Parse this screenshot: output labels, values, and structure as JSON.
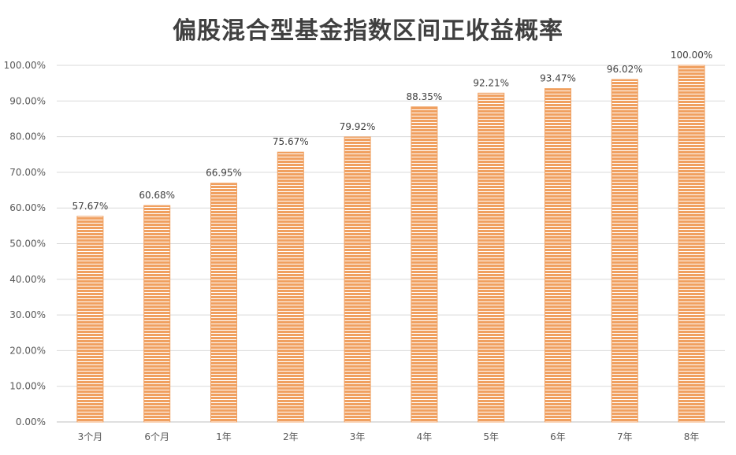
{
  "chart_data": {
    "type": "bar",
    "title": "偏股混合型基金指数区间正收益概率",
    "categories": [
      "3个月",
      "6个月",
      "1年",
      "2年",
      "3年",
      "4年",
      "5年",
      "6年",
      "7年",
      "8年"
    ],
    "values": [
      57.67,
      60.68,
      66.95,
      75.67,
      79.92,
      88.35,
      92.21,
      93.47,
      96.02,
      100.0
    ],
    "data_labels": [
      "57.67%",
      "60.68%",
      "66.95%",
      "75.67%",
      "79.92%",
      "88.35%",
      "92.21%",
      "93.47%",
      "96.02%",
      "100.00%"
    ],
    "ylim": [
      0,
      100
    ],
    "yticks": [
      "0.00%",
      "10.00%",
      "20.00%",
      "30.00%",
      "40.00%",
      "50.00%",
      "60.00%",
      "70.00%",
      "80.00%",
      "90.00%",
      "100.00%"
    ],
    "grid": true,
    "legend": "none",
    "bar_color": "#f0a060",
    "bar_stripe_color": "#ffffff"
  }
}
